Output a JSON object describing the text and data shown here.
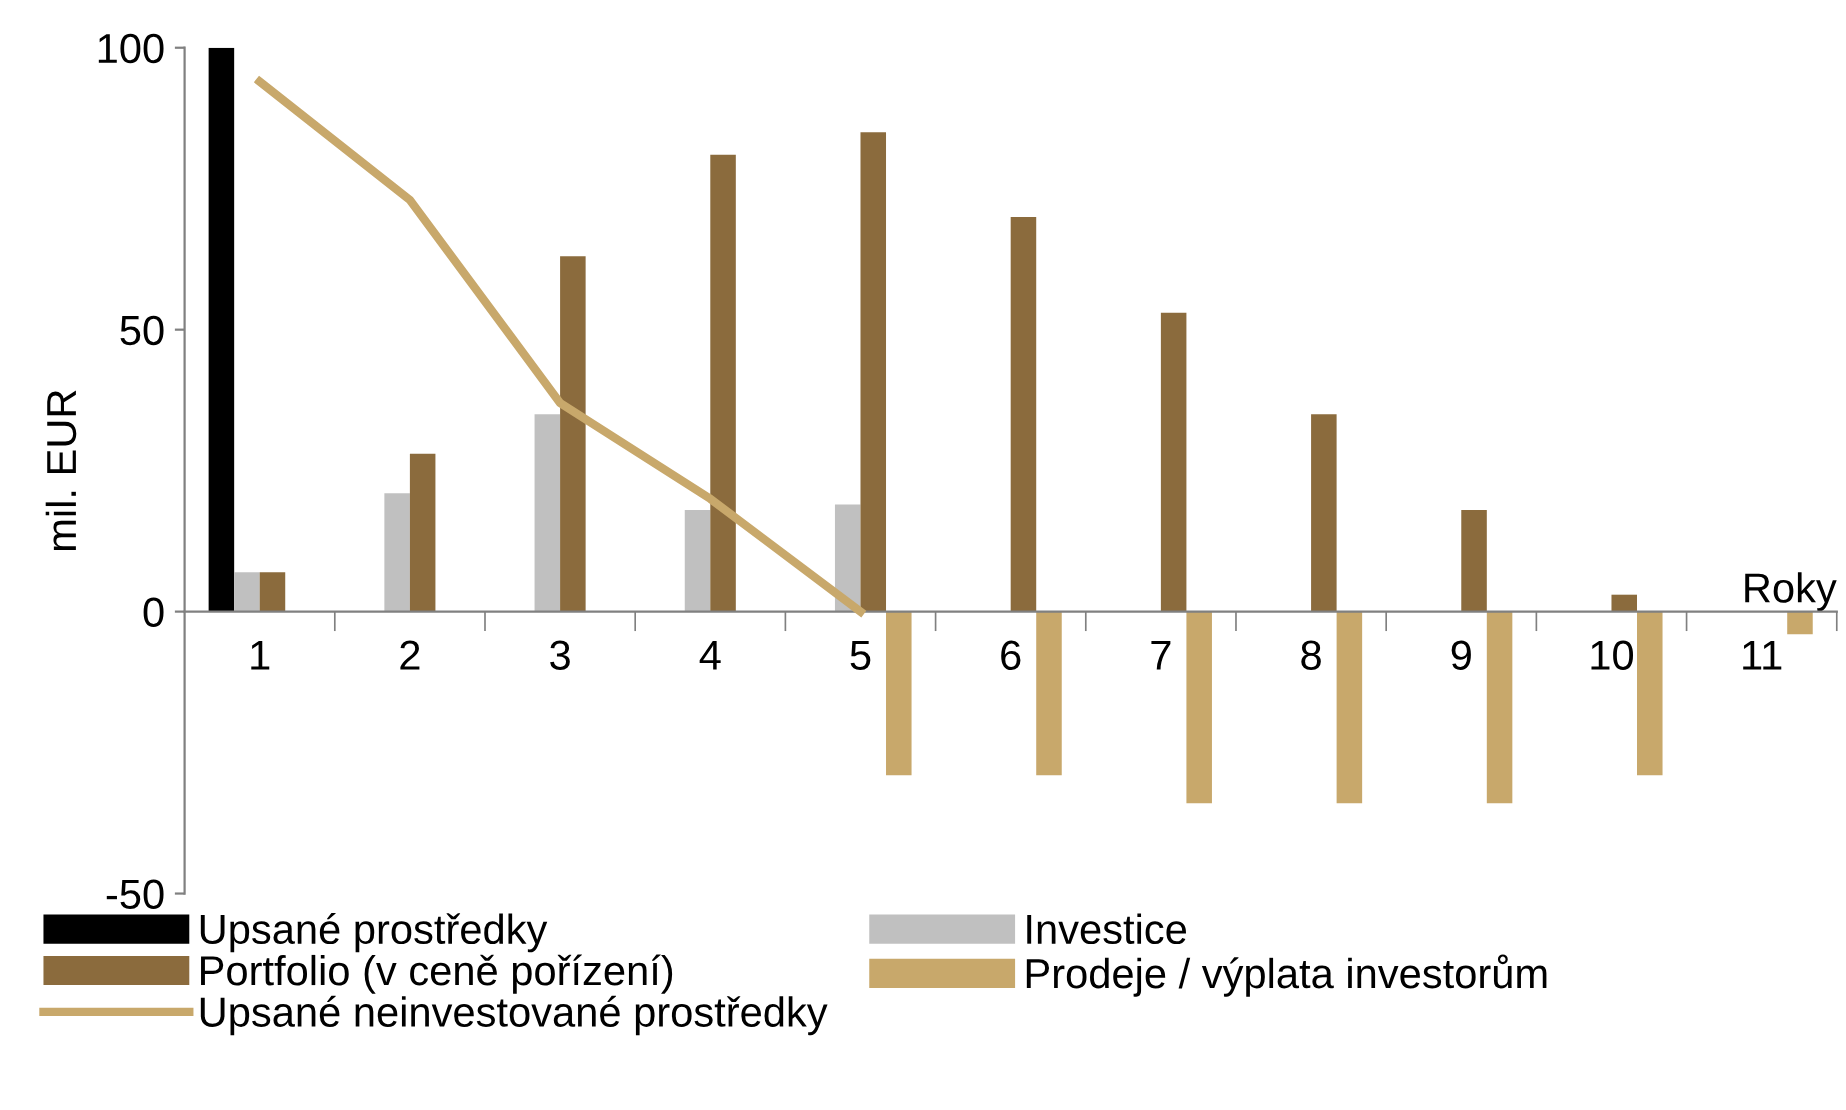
{
  "chart_data": {
    "type": "bar",
    "ylabel": "mil. EUR",
    "xlabel": "Roky",
    "categories": [
      "1",
      "2",
      "3",
      "4",
      "5",
      "6",
      "7",
      "8",
      "9",
      "10",
      "11"
    ],
    "series": [
      {
        "name": "Upsané prostředky",
        "color": "#000000",
        "values": [
          100,
          null,
          null,
          null,
          null,
          null,
          null,
          null,
          null,
          null,
          null
        ]
      },
      {
        "name": "Investice",
        "color": "#c0c0c0",
        "values": [
          7,
          21,
          35,
          18,
          19,
          null,
          null,
          null,
          null,
          null,
          null
        ]
      },
      {
        "name": "Portfolio (v ceně pořízení)",
        "color": "#8b6b3d",
        "values": [
          7,
          28,
          63,
          81,
          85,
          70,
          53,
          35,
          18,
          3,
          null
        ]
      },
      {
        "name": "Prodeje / výplata investorům",
        "color": "#c8a86b",
        "values": [
          null,
          null,
          null,
          null,
          -29,
          -29,
          -34,
          -34,
          -34,
          -29,
          -4
        ]
      },
      {
        "name": "Upsané neinvestované prostředky",
        "type": "line",
        "color": "#c8a86b",
        "values": [
          94,
          73,
          37,
          20,
          0,
          null,
          null,
          null,
          null,
          null,
          null
        ]
      }
    ],
    "ylim": [
      -50,
      100
    ],
    "yticks": [
      -50,
      0,
      50,
      100
    ],
    "grid": false,
    "legend": "bottom",
    "marker": "none",
    "line_style": "solid"
  }
}
